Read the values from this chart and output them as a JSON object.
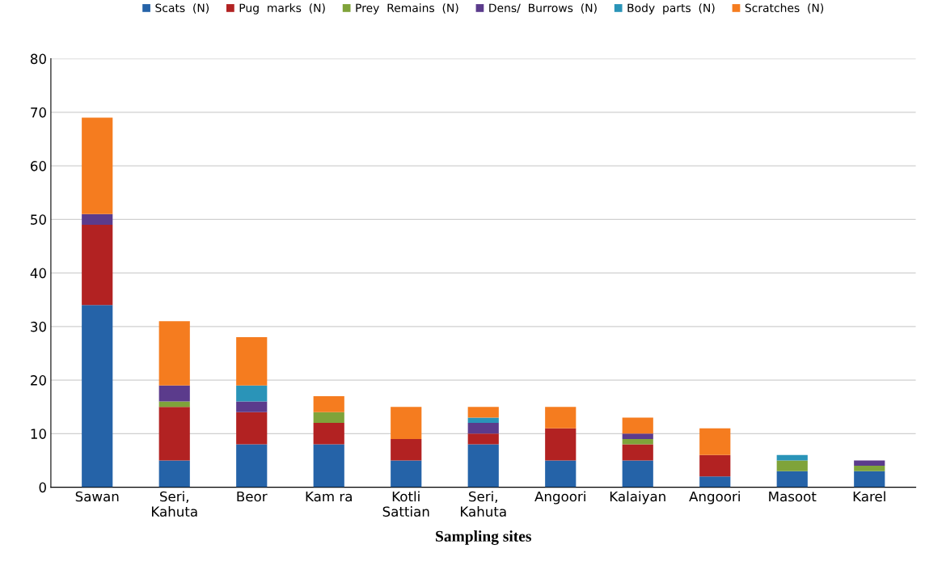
{
  "chart_data": {
    "type": "bar",
    "stacked": true,
    "xlabel": "Sampling sites",
    "categories": [
      "Sawan",
      "Seri,\nKahuta",
      "Beor",
      "Kam ra",
      "Kotli\nSattian",
      "Seri,\nKahuta",
      "Angoori",
      "Kalaiyan",
      "Angoori",
      "Masoot",
      "Karel"
    ],
    "series": [
      {
        "name": "Scats  (N)",
        "color": "#2563a8",
        "values": [
          34,
          5,
          8,
          8,
          5,
          8,
          5,
          5,
          2,
          3,
          3
        ]
      },
      {
        "name": "Pug  marks  (N)",
        "color": "#b22222",
        "values": [
          15,
          10,
          6,
          4,
          4,
          2,
          6,
          3,
          4,
          0,
          0
        ]
      },
      {
        "name": "Prey  Remains  (N)",
        "color": "#7fa33a",
        "values": [
          0,
          1,
          0,
          2,
          0,
          0,
          0,
          1,
          0,
          2,
          1
        ]
      },
      {
        "name": "Dens/  Burrows  (N)",
        "color": "#5b3b8c",
        "values": [
          2,
          3,
          2,
          0,
          0,
          2,
          0,
          1,
          0,
          0,
          1
        ]
      },
      {
        "name": "Body  parts  (N)",
        "color": "#2a94b8",
        "values": [
          0,
          0,
          3,
          0,
          0,
          1,
          0,
          0,
          0,
          1,
          0
        ]
      },
      {
        "name": "Scratches  (N)",
        "color": "#f57c1f",
        "values": [
          18,
          12,
          9,
          3,
          6,
          2,
          4,
          3,
          5,
          0,
          0
        ]
      }
    ],
    "ylim": [
      0,
      80
    ],
    "yticks": [
      0,
      10,
      20,
      30,
      40,
      50,
      60,
      70,
      80
    ],
    "grid": "y",
    "legend": "top"
  }
}
